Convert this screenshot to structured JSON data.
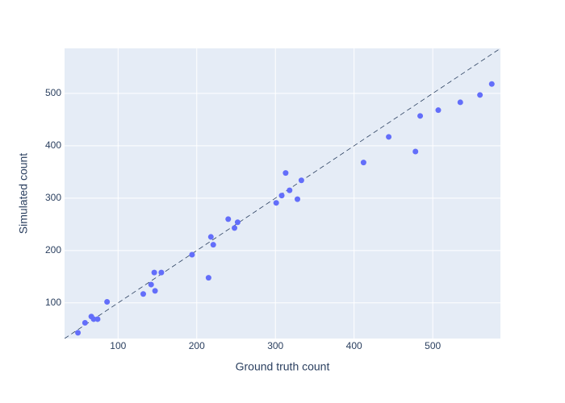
{
  "chart_data": {
    "type": "scatter",
    "x_label": "Ground truth count",
    "y_label": "Simulated count",
    "x": [
      49,
      58,
      66,
      69,
      74,
      86,
      132,
      142,
      146,
      147,
      155,
      194,
      215,
      218,
      221,
      240,
      248,
      252,
      301,
      308,
      313,
      318,
      328,
      333,
      412,
      444,
      478,
      484,
      507,
      535,
      560,
      575
    ],
    "values": [
      43,
      62,
      74,
      69,
      69,
      102,
      117,
      135,
      158,
      123,
      158,
      192,
      148,
      226,
      211,
      260,
      243,
      254,
      291,
      305,
      348,
      315,
      298,
      334,
      368,
      417,
      389,
      457,
      468,
      483,
      497,
      518
    ],
    "color": "#636efa",
    "xlim": [
      32,
      586
    ],
    "ylim": [
      32,
      586
    ],
    "xticks": [
      100,
      200,
      300,
      400,
      500
    ],
    "yticks": [
      100,
      200,
      300,
      400,
      500
    ],
    "grid": true,
    "diagonal": true
  }
}
